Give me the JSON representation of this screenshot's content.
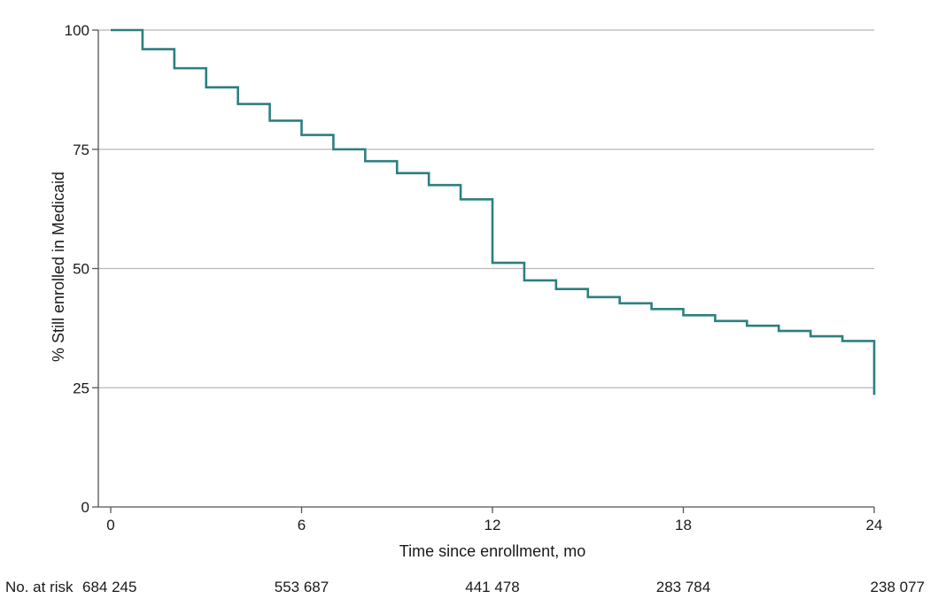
{
  "chart_data": {
    "type": "line",
    "step": true,
    "xlabel": "Time since enrollment, mo",
    "ylabel": "% Still enrolled in Medicaid",
    "xlim": [
      0,
      24
    ],
    "ylim": [
      0,
      100
    ],
    "x_ticks": [
      0,
      6,
      12,
      18,
      24
    ],
    "y_ticks": [
      0,
      25,
      50,
      75,
      100
    ],
    "grid": "horizontal",
    "line_color": "#2e7f7f",
    "series": [
      {
        "x": [
          0,
          1,
          2,
          3,
          4,
          5,
          6,
          7,
          8,
          9,
          10,
          11,
          12,
          13,
          14,
          15,
          16,
          17,
          18,
          19,
          20,
          21,
          22,
          23,
          24
        ],
        "values": [
          100,
          96,
          92,
          88,
          84.5,
          81,
          78,
          75,
          72.5,
          70,
          67.5,
          64.5,
          51.2,
          47.5,
          45.7,
          44,
          42.7,
          41.5,
          40.2,
          39,
          38,
          36.9,
          35.8,
          34.8,
          23.5
        ]
      }
    ],
    "at_risk": {
      "label": "No. at risk",
      "x": [
        0,
        6,
        12,
        18,
        24
      ],
      "values": [
        "684 245",
        "553 687",
        "441 478",
        "283 784",
        "238 077"
      ]
    }
  }
}
